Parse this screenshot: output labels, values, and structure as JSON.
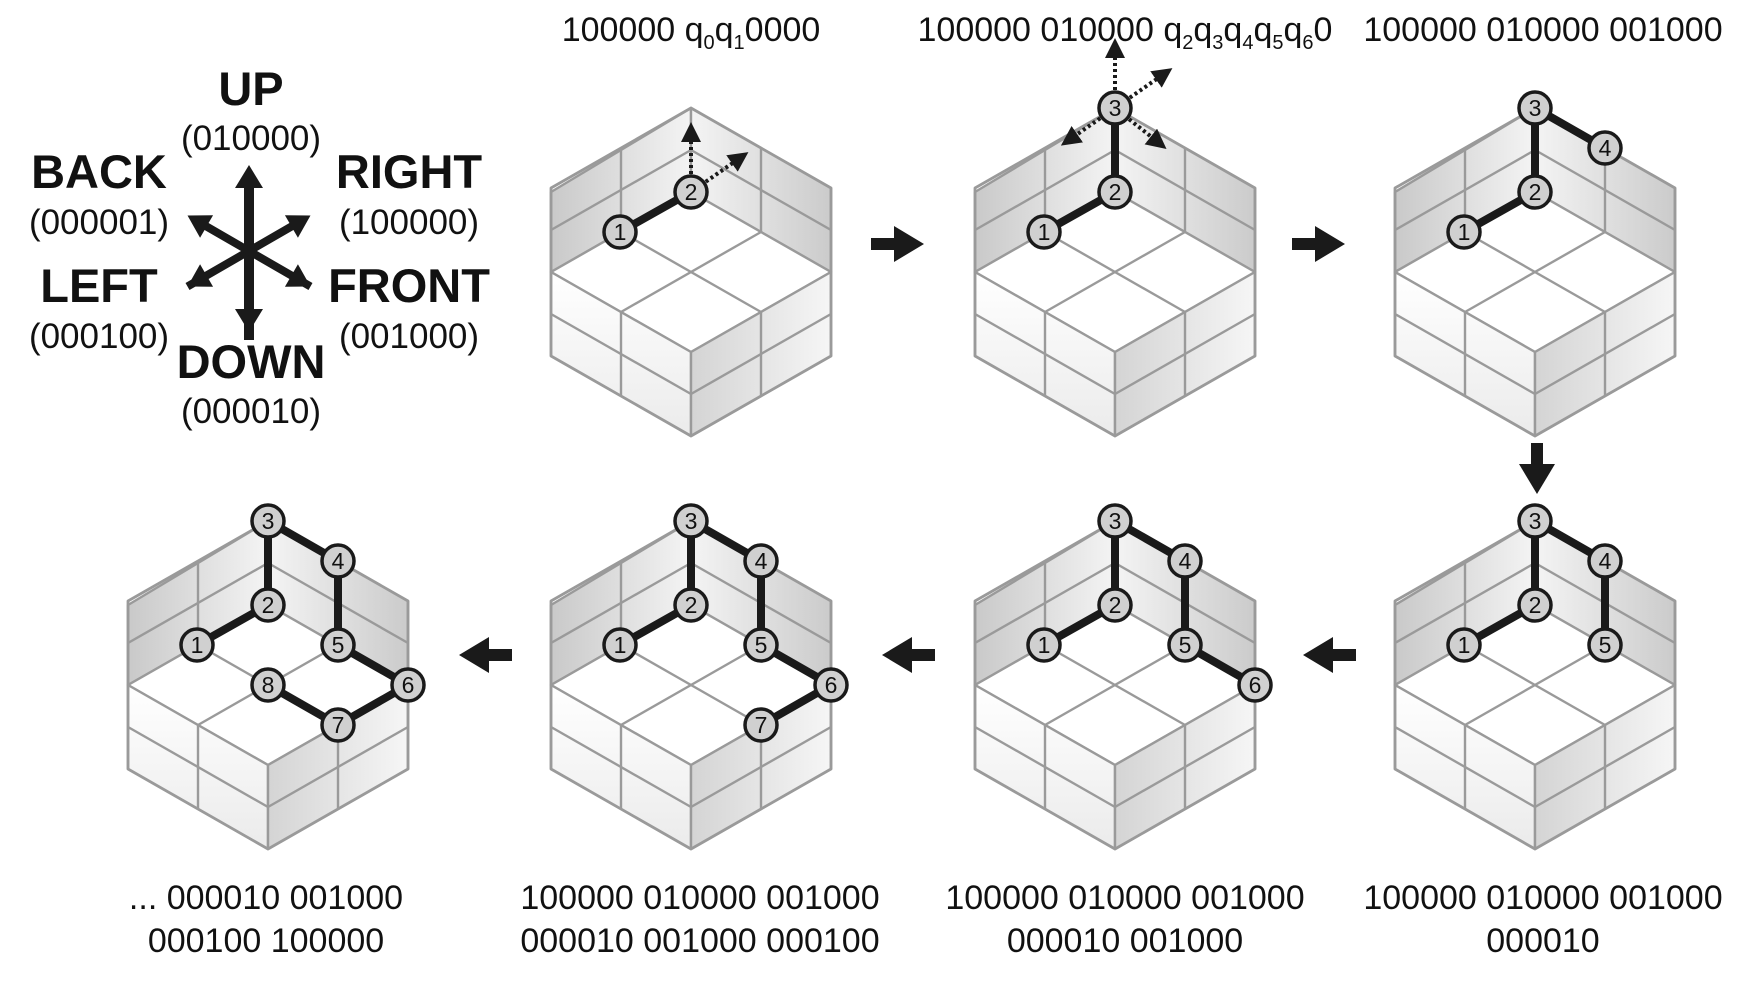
{
  "directions": [
    {
      "id": "up",
      "name": "UP",
      "code": "(010000)"
    },
    {
      "id": "back",
      "name": "BACK",
      "code": "(000001)"
    },
    {
      "id": "right",
      "name": "RIGHT",
      "code": "(100000)"
    },
    {
      "id": "left",
      "name": "LEFT",
      "code": "(000100)"
    },
    {
      "id": "front",
      "name": "FRONT",
      "code": "(001000)"
    },
    {
      "id": "down",
      "name": "DOWN",
      "code": "(000010)"
    }
  ],
  "captions": {
    "step1": {
      "prefix": "100000 q",
      "s1": "0",
      "mid": "q",
      "s2": "1",
      "suffix": "0000"
    },
    "step2": {
      "prefix": "100000 010000 q",
      "subs": [
        "2",
        "3",
        "4",
        "5",
        "6"
      ],
      "suffix": "0"
    },
    "step3": [
      "100000 010000 001000"
    ],
    "step4": [
      "100000 010000 001000",
      "000010"
    ],
    "step5": [
      "100000 010000 001000",
      "000010 001000"
    ],
    "step6": [
      "100000 010000 001000",
      "000010 001000 000100"
    ],
    "step7": [
      "... 000010 001000",
      "000100 100000"
    ]
  },
  "node_labels": [
    "1",
    "2",
    "3",
    "4",
    "5",
    "6",
    "7",
    "8"
  ],
  "steps": [
    {
      "id": "step1",
      "nodes": [
        "1",
        "2"
      ],
      "candidate_moves": [
        "up",
        "right"
      ]
    },
    {
      "id": "step2",
      "nodes": [
        "1",
        "2",
        "3"
      ],
      "candidate_moves": [
        "up",
        "right",
        "front",
        "back",
        "left"
      ]
    },
    {
      "id": "step3",
      "nodes": [
        "1",
        "2",
        "3",
        "4"
      ]
    },
    {
      "id": "step4",
      "nodes": [
        "1",
        "2",
        "3",
        "4",
        "5"
      ]
    },
    {
      "id": "step5",
      "nodes": [
        "1",
        "2",
        "3",
        "4",
        "5",
        "6"
      ]
    },
    {
      "id": "step6",
      "nodes": [
        "1",
        "2",
        "3",
        "4",
        "5",
        "6",
        "7"
      ]
    },
    {
      "id": "step7",
      "nodes": [
        "1",
        "2",
        "3",
        "4",
        "5",
        "6",
        "7",
        "8"
      ]
    }
  ],
  "colors": {
    "line": "#1a1a1a",
    "node_fill": "#d0d0d0",
    "cube_edge": "#9a9a9a",
    "floor": "#ffffff",
    "wall": "#e4e4e4"
  }
}
